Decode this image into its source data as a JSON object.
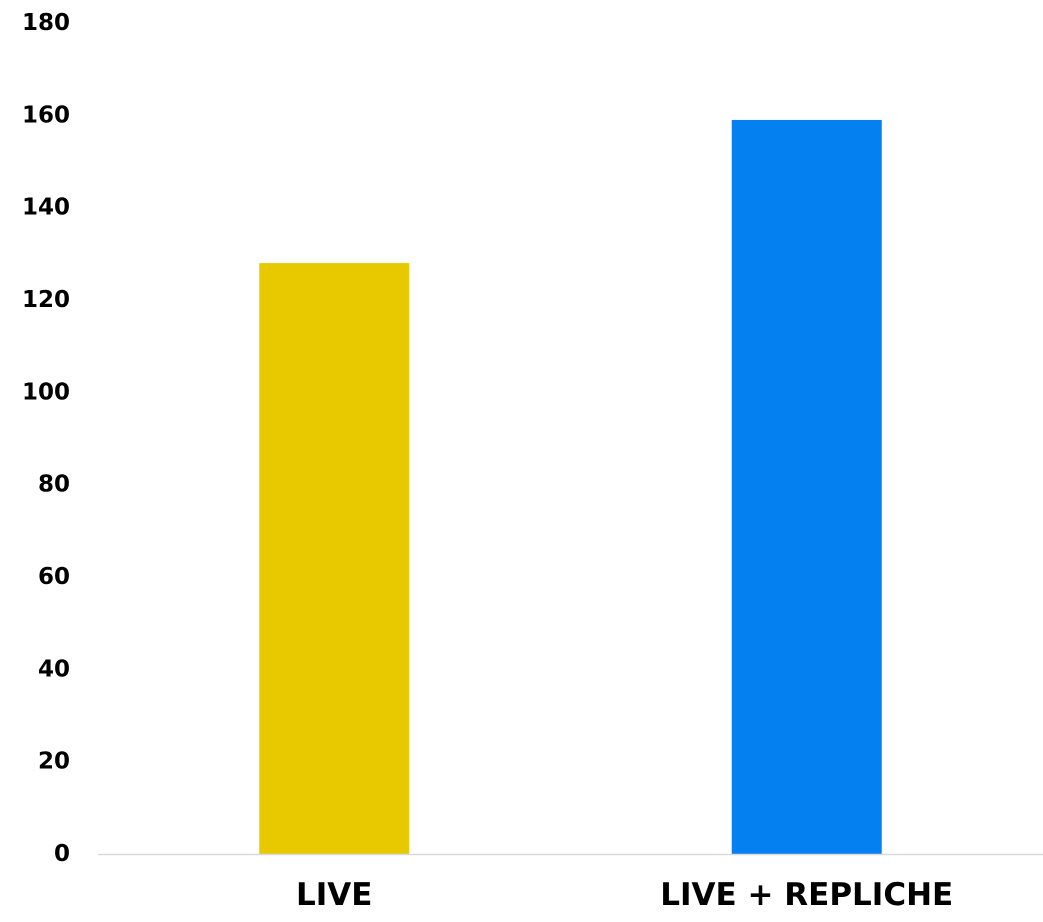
{
  "chart_data": {
    "type": "bar",
    "title": "",
    "xlabel": "",
    "ylabel": "",
    "categories": [
      "LIVE",
      "LIVE + REPLICHE"
    ],
    "values": [
      128,
      159
    ],
    "colors": [
      "#E8C900",
      "#0580F0"
    ],
    "ylim": [
      0,
      180
    ],
    "yticks": [
      0,
      20,
      40,
      60,
      80,
      100,
      120,
      140,
      160,
      180
    ],
    "grid": false,
    "legend": "none"
  }
}
